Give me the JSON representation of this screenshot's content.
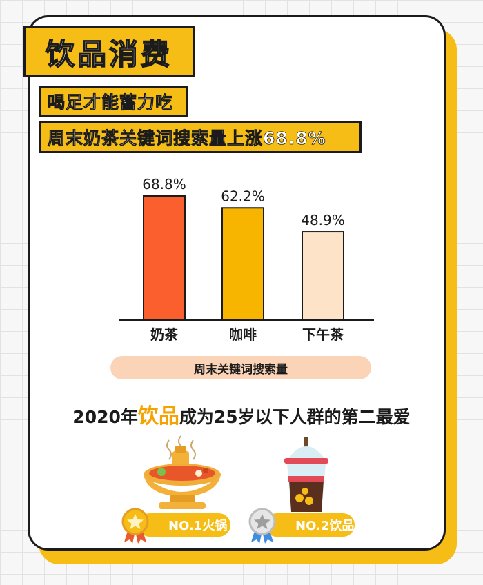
{
  "header": {
    "title": "饮品消费",
    "subtitle_1": "喝足才能蓄力吃",
    "subtitle_2": "周末奶茶关键词搜索量上涨68.8%"
  },
  "chart_data": {
    "type": "bar",
    "categories": [
      "奶茶",
      "咖啡",
      "下午茶"
    ],
    "values": [
      68.8,
      62.2,
      48.9
    ],
    "value_labels": [
      "68.8%",
      "62.2%",
      "48.9%"
    ],
    "colors": [
      "#fb5f2d",
      "#f7b500",
      "#fde3c8"
    ],
    "legend": "周末关键词搜索量",
    "ylim": [
      0,
      100
    ],
    "grid": false
  },
  "headline": {
    "prefix": "2020年",
    "highlight": "饮品",
    "suffix": "成为25岁以下人群的第二最爱"
  },
  "rankings": [
    {
      "label": "NO.1火锅",
      "medal": "gold-medal-icon",
      "item_icon": "hotpot-icon"
    },
    {
      "label": "NO.2饮品",
      "medal": "silver-medal-icon",
      "item_icon": "bubble-tea-icon"
    }
  ],
  "colors": {
    "accent": "#f6bd16",
    "outline": "#1b1b1b",
    "highlight_text": "#f5a300",
    "legend_bg": "#fbd4b8"
  }
}
